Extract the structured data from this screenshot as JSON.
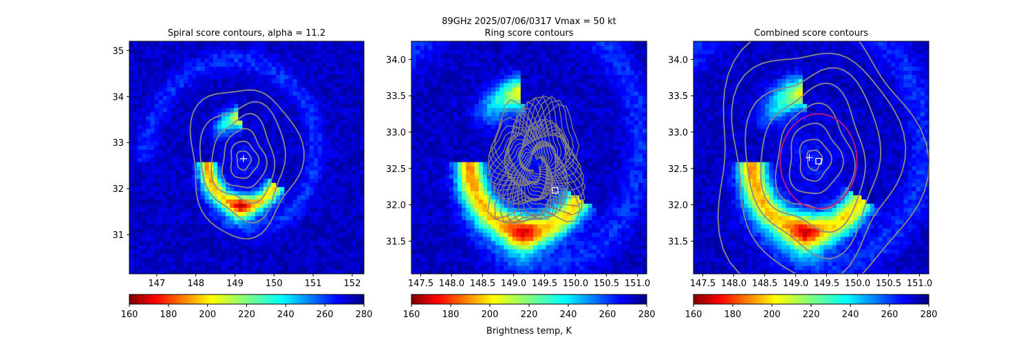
{
  "figure": {
    "suptitle_line1": "89GHz  2025/07/06/0317    Vmax = 50 kt",
    "colorbar_label": "Brightness temp, K"
  },
  "chart_data": [
    {
      "type": "heatmap",
      "title": "Spiral score contours, alpha = 11.2",
      "xlim": [
        146.3,
        152.3
      ],
      "ylim": [
        30.15,
        35.2
      ],
      "xticks": [
        147,
        148,
        149,
        150,
        151,
        152
      ],
      "yticks": [
        31,
        32,
        33,
        34,
        35
      ],
      "center_marker": {
        "symbol": "+",
        "x": 149.22,
        "y": 32.65
      },
      "contours": "spiral score (gray)",
      "colorbar": {
        "min": 160,
        "max": 280,
        "ticks": [
          160,
          180,
          200,
          220,
          240,
          260,
          280
        ],
        "colormap": "jet_r"
      }
    },
    {
      "type": "heatmap",
      "title": "Ring score contours",
      "xlim": [
        147.35,
        151.15
      ],
      "ylim": [
        31.05,
        34.25
      ],
      "xticks": [
        147.5,
        148.0,
        148.5,
        149.0,
        149.5,
        150.0,
        150.5,
        151.0
      ],
      "yticks": [
        31.5,
        32.0,
        32.5,
        33.0,
        33.5,
        34.0
      ],
      "center_marker": {
        "symbol": "square",
        "x": 149.67,
        "y": 32.2
      },
      "contours": "ring score (gray, dense)",
      "colorbar": {
        "min": 160,
        "max": 280,
        "ticks": [
          160,
          180,
          200,
          220,
          240,
          260,
          280
        ],
        "colormap": "jet_r"
      }
    },
    {
      "type": "heatmap",
      "title": "Combined score contours",
      "xlim": [
        147.35,
        151.15
      ],
      "ylim": [
        31.05,
        34.25
      ],
      "xticks": [
        147.5,
        148.0,
        148.5,
        149.0,
        149.5,
        150.0,
        150.5,
        151.0
      ],
      "yticks": [
        31.5,
        32.0,
        32.5,
        33.0,
        33.5,
        34.0
      ],
      "center_markers": [
        {
          "symbol": "+",
          "x": 149.22,
          "y": 32.65
        },
        {
          "symbol": "square",
          "x": 149.37,
          "y": 32.6
        }
      ],
      "ring": {
        "color": "#b0198f",
        "center_x": 149.37,
        "center_y": 32.6,
        "radius_deg": 0.62
      },
      "colorbar": {
        "min": 160,
        "max": 280,
        "ticks": [
          160,
          180,
          200,
          220,
          240,
          260,
          280
        ],
        "colormap": "jet_r"
      }
    }
  ]
}
